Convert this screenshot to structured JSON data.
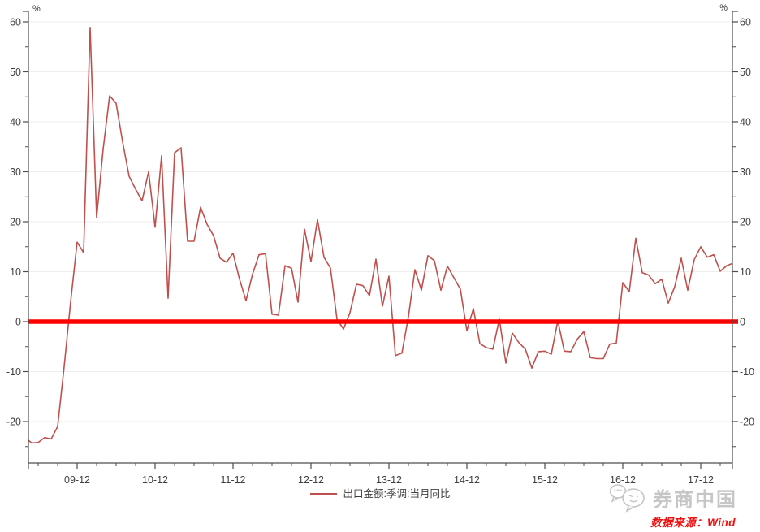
{
  "chart": {
    "unit_label_left": "%",
    "unit_label_right": "%",
    "legend": {
      "label": "出口金额:季调:当月同比"
    },
    "watermark": "券商中国",
    "source_note": "数据来源：Wind",
    "colors": {
      "series": "#c0504d",
      "zero_line": "#fe0000",
      "axis": "#4d4d4d",
      "grid": "#efecec",
      "label": "#404040",
      "watermark": "#c6c6c6",
      "source": "#f20d0d"
    }
  },
  "chart_data": {
    "type": "line",
    "title": "",
    "series_name": "出口金额:季调:当月同比",
    "frequency": "monthly",
    "legend_position": "bottom-center",
    "grid": "horizontal-light",
    "ylim": [
      -28.5,
      62
    ],
    "y_ticks": [
      -20,
      -10,
      0,
      10,
      20,
      30,
      40,
      50,
      60
    ],
    "x_tick_labels": [
      "09-12",
      "10-12",
      "11-12",
      "12-12",
      "13-12",
      "14-12",
      "15-12",
      "16-12",
      "17-12"
    ],
    "x_ticks": [
      {
        "label": "09-12",
        "i": 8
      },
      {
        "label": "10-12",
        "i": 20
      },
      {
        "label": "11-12",
        "i": 32
      },
      {
        "label": "12-12",
        "i": 44
      },
      {
        "label": "13-12",
        "i": 56
      },
      {
        "label": "14-12",
        "i": 68
      },
      {
        "label": "15-12",
        "i": 80
      },
      {
        "label": "16-12",
        "i": 92
      },
      {
        "label": "17-12",
        "i": 104
      }
    ],
    "zero_line": 0,
    "values": [
      -23.2,
      -24.3,
      -24.2,
      -23.2,
      -23.5,
      -21.0,
      -9.0,
      4.0,
      15.9,
      13.8,
      58.9,
      20.8,
      34.5,
      45.2,
      43.7,
      36.0,
      29.1,
      26.5,
      24.2,
      30.0,
      18.9,
      33.2,
      4.7,
      33.8,
      34.8,
      16.1,
      16.1,
      22.9,
      19.5,
      17.2,
      12.7,
      11.9,
      13.7,
      8.5,
      4.2,
      9.5,
      13.4,
      13.6,
      1.5,
      1.3,
      11.2,
      10.7,
      3.9,
      18.5,
      12.0,
      20.4,
      12.9,
      10.7,
      0.5,
      -1.5,
      1.8,
      7.5,
      7.2,
      5.2,
      12.5,
      3.1,
      9.1,
      -6.8,
      -6.3,
      1.0,
      10.4,
      6.3,
      13.2,
      12.2,
      6.3,
      11.1,
      8.8,
      6.5,
      -1.8,
      2.6,
      -4.4,
      -5.2,
      -5.5,
      0.5,
      -8.3,
      -2.3,
      -4.2,
      -5.5,
      -9.3,
      -6.0,
      -5.9,
      -6.5,
      0.2,
      -5.9,
      -6.0,
      -3.5,
      -2.0,
      -7.2,
      -7.4,
      -7.4,
      -4.5,
      -4.3,
      7.8,
      6.0,
      16.7,
      9.8,
      9.3,
      7.6,
      8.5,
      3.7,
      7.0,
      12.7,
      6.3,
      12.4,
      15.0,
      12.9,
      13.4,
      10.1,
      11.2,
      11.7
    ]
  }
}
